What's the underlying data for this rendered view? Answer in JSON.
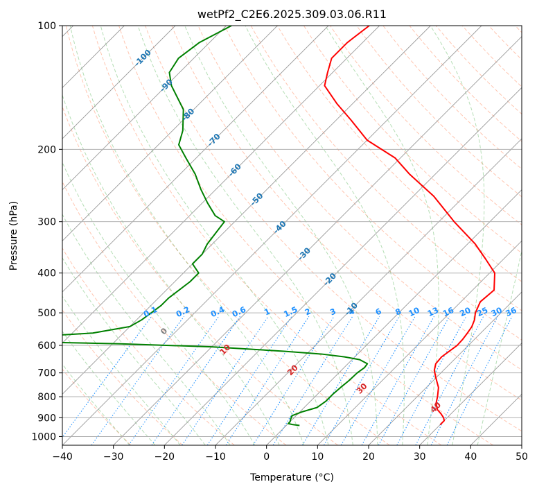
{
  "chart_data": {
    "type": "skew-t",
    "title": "wetPf2_C2E6.2025.309.03.06.R11",
    "xlabel": "Temperature (°C)",
    "ylabel": "Pressure (hPa)",
    "xlim": [
      -40,
      50
    ],
    "ylim": [
      1050,
      100
    ],
    "x_ticks": [
      -40,
      -30,
      -20,
      -10,
      0,
      10,
      20,
      30,
      40,
      50
    ],
    "y_ticks": [
      1000,
      900,
      800,
      700,
      600,
      500,
      400,
      300,
      200,
      100
    ],
    "y_scale": "log",
    "grid": true,
    "series": [
      {
        "name": "temperature",
        "color": "#ff0000",
        "pressure": [
          936,
          915,
          900,
          880,
          860,
          830,
          800,
          760,
          720,
          690,
          665,
          640,
          620,
          600,
          580,
          560,
          540,
          520,
          500,
          470,
          440,
          400,
          370,
          340,
          300,
          260,
          230,
          210,
          190,
          170,
          155,
          140,
          130,
          120,
          110,
          100
        ],
        "temperature": [
          30.0,
          30.0,
          29.3,
          28.0,
          26.5,
          25.0,
          24.0,
          22.4,
          20.0,
          18.2,
          17.2,
          17.0,
          17.4,
          17.8,
          17.7,
          17.4,
          17.0,
          16.2,
          15.0,
          13.8,
          14.2,
          11.0,
          6.5,
          1.5,
          -7.0,
          -16.0,
          -25.0,
          -31.0,
          -40.0,
          -47.0,
          -53.0,
          -59.0,
          -61.0,
          -63.0,
          -63.0,
          -62.0
        ]
      },
      {
        "name": "dewpoint",
        "color": "#008000",
        "pressure": [
          940,
          935,
          930,
          920,
          910,
          890,
          870,
          850,
          820,
          790,
          760,
          730,
          700,
          680,
          665,
          650,
          640,
          630,
          620,
          605,
          595,
          590,
          587,
          584,
          582,
          578,
          570,
          560,
          540,
          520,
          500,
          480,
          460,
          440,
          420,
          400,
          380,
          360,
          340,
          300,
          290,
          270,
          250,
          230,
          210,
          195,
          180,
          160,
          140,
          130,
          120,
          110,
          100
        ],
        "temperature": [
          2.6,
          1.0,
          0.0,
          0.0,
          -0.3,
          -0.8,
          0.5,
          2.5,
          3.0,
          3.0,
          3.2,
          3.5,
          3.6,
          4.0,
          3.8,
          1.5,
          -2.0,
          -7.0,
          -15.0,
          -30.0,
          -48.0,
          -62.0,
          -75.0,
          -80.0,
          -84.0,
          -79.0,
          -66.0,
          -56.0,
          -50.0,
          -49.0,
          -48.5,
          -48.0,
          -48.0,
          -47.5,
          -47.0,
          -47.0,
          -50.0,
          -50.0,
          -51.0,
          -52.0,
          -55.0,
          -59.0,
          -63.0,
          -67.0,
          -72.0,
          -76.0,
          -78.0,
          -82.0,
          -89.0,
          -92.0,
          -93.0,
          -92.0,
          -89.0
        ]
      }
    ],
    "isotherm_labels": [
      "-100",
      "-90",
      "-80",
      "-70",
      "-60",
      "-50",
      "-40",
      "-30",
      "-20",
      "-10"
    ],
    "mixing_ratio_labels": [
      "0.1",
      "0.2",
      "0.4",
      "0.6",
      "1",
      "1.5",
      "2",
      "3",
      "4",
      "6",
      "8",
      "10",
      "13",
      "16",
      "20",
      "25",
      "30",
      "36"
    ],
    "dry_adiabat_labels": [
      "0",
      "10",
      "20",
      "30",
      "40"
    ],
    "colors": {
      "isotherm_label": "#1f77b4",
      "mixing_ratio": "#1e90ff",
      "dry_adiabat": "#ff7f50",
      "moist_adiabat": "#2ca02c",
      "dry_adiabat_label": "#d62728",
      "zero_label": "#808080",
      "isobar_grid": "#b0b0b0"
    }
  }
}
